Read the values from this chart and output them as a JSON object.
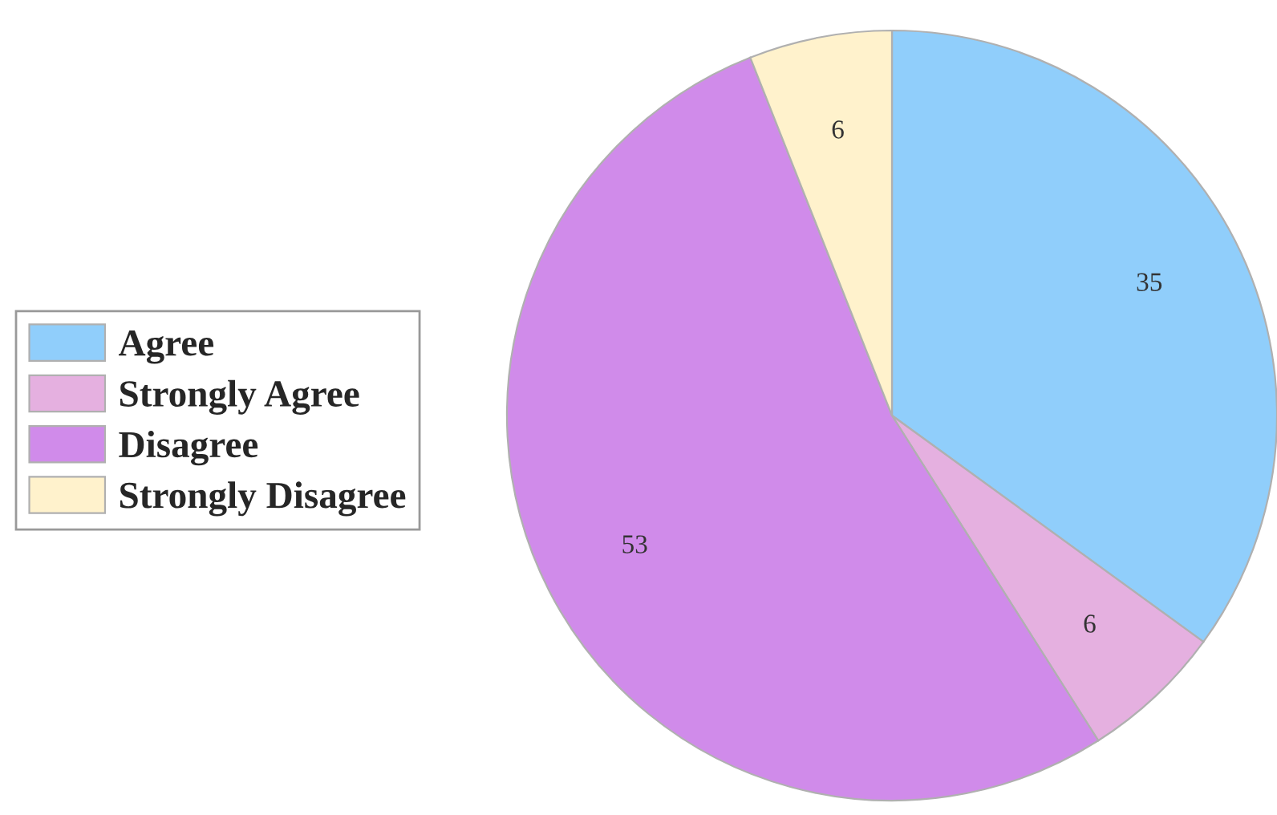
{
  "chart_data": {
    "type": "pie",
    "categories": [
      "Agree",
      "Strongly Agree",
      "Disagree",
      "Strongly Disagree"
    ],
    "values": [
      35,
      6,
      53,
      6
    ],
    "colors": [
      "#90cefb",
      "#e5b0e0",
      "#d08bea",
      "#fff2cc"
    ],
    "data_labels": true,
    "legend": "left"
  }
}
